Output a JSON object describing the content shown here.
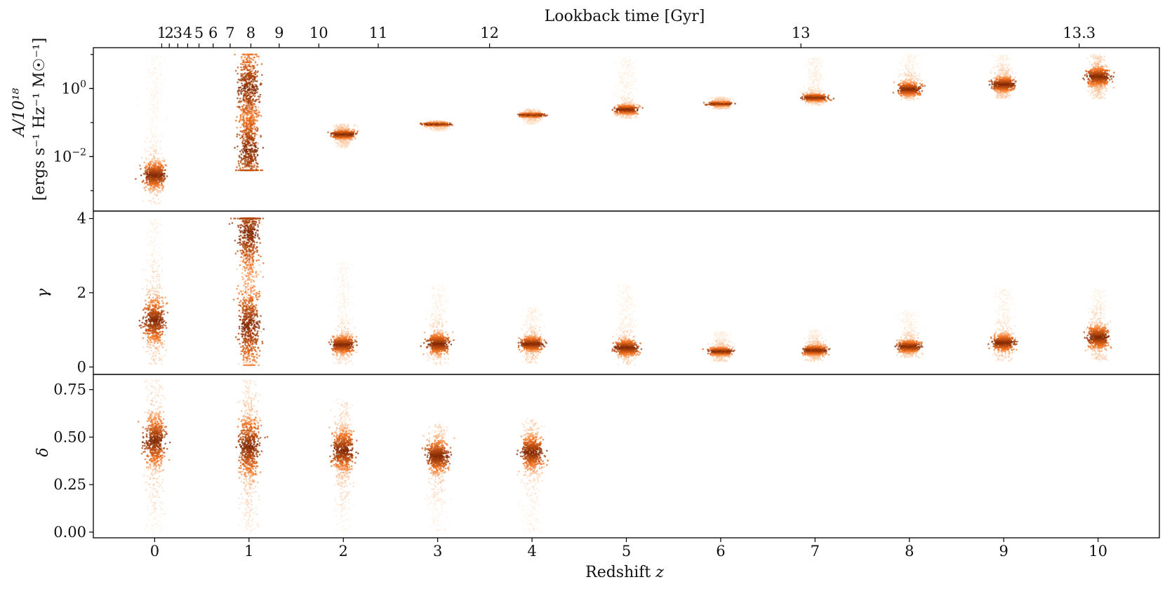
{
  "chart_data": {
    "type": "scatter",
    "xlabel_prefix": "Redshift ",
    "xlabel_var": "z",
    "top_axis_label": "Lookback time [Gyr]",
    "x_ticks": [
      0,
      1,
      2,
      3,
      4,
      5,
      6,
      7,
      8,
      9,
      10
    ],
    "x_tick_labels": [
      "0",
      "1",
      "2",
      "3",
      "4",
      "5",
      "6",
      "7",
      "8",
      "9",
      "10"
    ],
    "xlim": [
      -0.65,
      10.65
    ],
    "top_ticks": [
      {
        "label": "1",
        "z": 0.075
      },
      {
        "label": "2",
        "z": 0.155
      },
      {
        "label": "3",
        "z": 0.245
      },
      {
        "label": "4",
        "z": 0.35
      },
      {
        "label": "5",
        "z": 0.47
      },
      {
        "label": "6",
        "z": 0.62
      },
      {
        "label": "7",
        "z": 0.8
      },
      {
        "label": "8",
        "z": 1.02
      },
      {
        "label": "9",
        "z": 1.32
      },
      {
        "label": "10",
        "z": 1.74
      },
      {
        "label": "11",
        "z": 2.37
      },
      {
        "label": "12",
        "z": 3.55
      },
      {
        "label": "13",
        "z": 6.85
      },
      {
        "label": "13.3",
        "z": 9.8
      }
    ],
    "colors": {
      "light": "#fde4cc",
      "mid": "#f2701d",
      "dark": "#7f2704"
    },
    "panels": [
      {
        "id": "A",
        "ylabel_line1": "A/10¹⁸",
        "ylabel_line2": "[ergs s⁻¹ Hz⁻¹ M☉⁻¹]",
        "yscale": "log",
        "ylim_log10": [
          -3.6,
          1.2
        ],
        "y_ticks": [
          {
            "value_log10": 0,
            "base": "10",
            "exp": "0"
          },
          {
            "value_log10": -2,
            "base": "10",
            "exp": "−2"
          }
        ],
        "groups": [
          {
            "z": 0,
            "center_log10": -2.55,
            "spread": 0.35,
            "tail_max_log10": 1.0,
            "tail_min_log10": -3.4
          },
          {
            "z": 1,
            "center_log10": -0.9,
            "spread": 1.2,
            "tail_max_log10": 1.0,
            "tail_min_log10": -2.4,
            "bimodal": [
              0.0,
              -1.8
            ]
          },
          {
            "z": 2,
            "center_log10": -1.35,
            "spread": 0.12,
            "tail_max_log10": -1.05,
            "tail_min_log10": -1.75
          },
          {
            "z": 3,
            "center_log10": -1.05,
            "spread": 0.05,
            "tail_max_log10": -0.95,
            "tail_min_log10": -1.25
          },
          {
            "z": 4,
            "center_log10": -0.78,
            "spread": 0.06,
            "tail_max_log10": -0.6,
            "tail_min_log10": -1.05
          },
          {
            "z": 5,
            "center_log10": -0.62,
            "spread": 0.12,
            "tail_max_log10": 0.9,
            "tail_min_log10": -0.9
          },
          {
            "z": 6,
            "center_log10": -0.45,
            "spread": 0.06,
            "tail_max_log10": -0.25,
            "tail_min_log10": -0.6
          },
          {
            "z": 7,
            "center_log10": -0.27,
            "spread": 0.1,
            "tail_max_log10": 0.9,
            "tail_min_log10": -0.5
          },
          {
            "z": 8,
            "center_log10": -0.02,
            "spread": 0.18,
            "tail_max_log10": 1.0,
            "tail_min_log10": -0.35
          },
          {
            "z": 9,
            "center_log10": 0.12,
            "spread": 0.2,
            "tail_max_log10": 1.0,
            "tail_min_log10": -0.3
          },
          {
            "z": 10,
            "center_log10": 0.35,
            "spread": 0.25,
            "tail_max_log10": 1.0,
            "tail_min_log10": -0.3
          }
        ]
      },
      {
        "id": "gamma",
        "ylabel": "γ",
        "yscale": "linear",
        "ylim": [
          -0.2,
          4.2
        ],
        "y_ticks": [
          {
            "value": 0,
            "label": "0"
          },
          {
            "value": 2,
            "label": "2"
          },
          {
            "value": 4,
            "label": "4"
          }
        ],
        "groups": [
          {
            "z": 0,
            "center": 1.25,
            "spread": 0.55,
            "tail_max": 4.0,
            "tail_min": 0.05
          },
          {
            "z": 1,
            "center": 1.6,
            "spread": 1.1,
            "tail_max": 4.0,
            "tail_min": 0.05,
            "bimodal": [
              3.6,
              1.1
            ]
          },
          {
            "z": 2,
            "center": 0.6,
            "spread": 0.22,
            "tail_max": 2.8,
            "tail_min": 0.05
          },
          {
            "z": 3,
            "center": 0.62,
            "spread": 0.25,
            "tail_max": 2.2,
            "tail_min": 0.05
          },
          {
            "z": 4,
            "center": 0.62,
            "spread": 0.18,
            "tail_max": 1.6,
            "tail_min": 0.1
          },
          {
            "z": 5,
            "center": 0.52,
            "spread": 0.2,
            "tail_max": 2.2,
            "tail_min": 0.05
          },
          {
            "z": 6,
            "center": 0.42,
            "spread": 0.1,
            "tail_max": 0.95,
            "tail_min": 0.15
          },
          {
            "z": 7,
            "center": 0.45,
            "spread": 0.12,
            "tail_max": 1.0,
            "tail_min": 0.15
          },
          {
            "z": 8,
            "center": 0.55,
            "spread": 0.15,
            "tail_max": 1.5,
            "tail_min": 0.25
          },
          {
            "z": 9,
            "center": 0.65,
            "spread": 0.2,
            "tail_max": 2.1,
            "tail_min": 0.15
          },
          {
            "z": 10,
            "center": 0.8,
            "spread": 0.28,
            "tail_max": 2.1,
            "tail_min": 0.15
          }
        ]
      },
      {
        "id": "delta",
        "ylabel": "δ",
        "yscale": "linear",
        "ylim": [
          -0.03,
          0.83
        ],
        "y_ticks": [
          {
            "value": 0,
            "label": "0.00"
          },
          {
            "value": 0.25,
            "label": "0.25"
          },
          {
            "value": 0.5,
            "label": "0.50"
          },
          {
            "value": 0.75,
            "label": "0.75"
          }
        ],
        "groups": [
          {
            "z": 0,
            "center": 0.48,
            "spread": 0.12,
            "tail_max": 0.8,
            "tail_min": 0.0
          },
          {
            "z": 1,
            "center": 0.45,
            "spread": 0.15,
            "tail_max": 0.8,
            "tail_min": 0.0
          },
          {
            "z": 2,
            "center": 0.43,
            "spread": 0.1,
            "tail_max": 0.7,
            "tail_min": 0.0
          },
          {
            "z": 3,
            "center": 0.4,
            "spread": 0.08,
            "tail_max": 0.57,
            "tail_min": 0.0
          },
          {
            "z": 4,
            "center": 0.42,
            "spread": 0.08,
            "tail_max": 0.6,
            "tail_min": 0.0
          }
        ]
      }
    ]
  }
}
